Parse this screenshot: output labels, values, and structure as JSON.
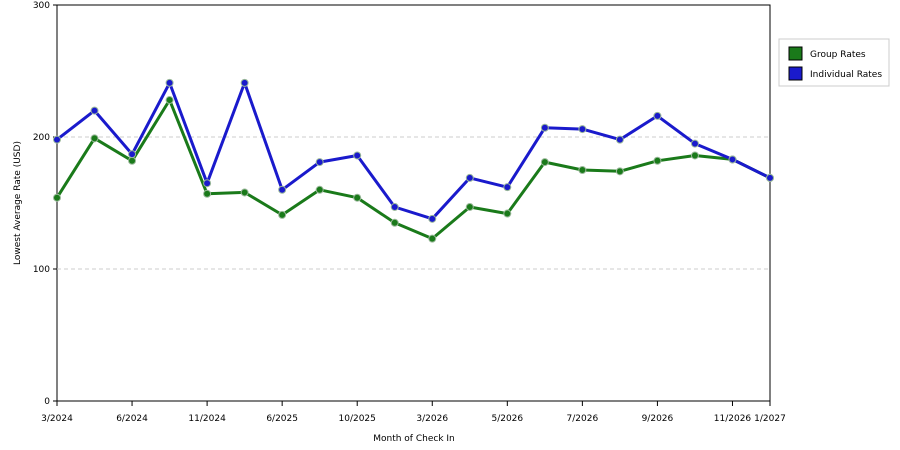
{
  "chart_data": {
    "type": "line",
    "xlabel": "Month of Check In",
    "ylabel": "Lowest Average Rate (USD)",
    "ylim": [
      0,
      300
    ],
    "yticks": [
      0,
      100,
      200,
      300
    ],
    "grid": "horizontal dashed",
    "legend_position": "right",
    "x_tick_labels": [
      "3/2024",
      "6/2024",
      "11/2024",
      "6/2025",
      "10/2025",
      "3/2026",
      "5/2026",
      "7/2026",
      "9/2026",
      "11/2026",
      "1/2027"
    ],
    "series": [
      {
        "name": "Group Rates",
        "color": "#1a7a1a",
        "values": [
          154,
          199,
          182,
          228,
          157,
          158,
          141,
          160,
          154,
          135,
          123,
          147,
          142,
          181,
          175,
          174,
          182,
          186,
          183,
          169
        ]
      },
      {
        "name": "Individual Rates",
        "color": "#1a1acc",
        "values": [
          198,
          220,
          187,
          241,
          165,
          241,
          160,
          181,
          186,
          147,
          138,
          169,
          162,
          207,
          206,
          198,
          216,
          195,
          183,
          169
        ]
      }
    ]
  }
}
